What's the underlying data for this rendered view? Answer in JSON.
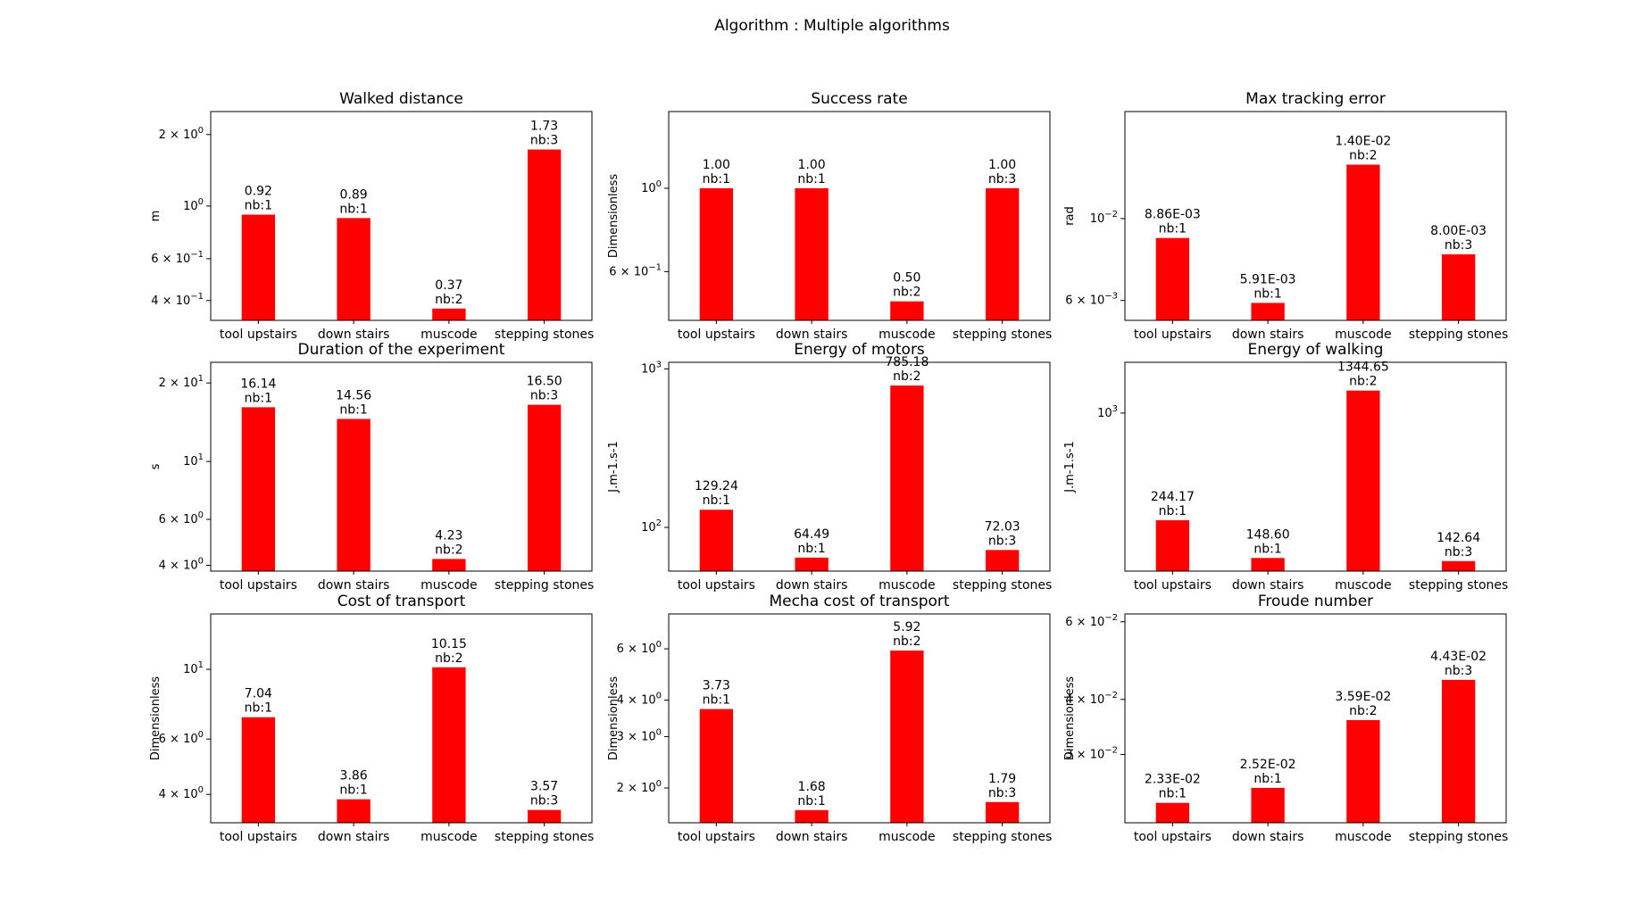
{
  "figure": {
    "suptitle": "Algorithm : Multiple algorithms",
    "bar_color": "#ff0000"
  },
  "chart_data": [
    {
      "type": "bar",
      "title": "Walked distance",
      "ylabel": "m",
      "yscale": "log",
      "ylim": [
        0.33,
        2.5
      ],
      "categories": [
        "tool upstairs",
        "down stairs",
        "muscode",
        "stepping stones"
      ],
      "values": [
        0.92,
        0.89,
        0.37,
        1.73
      ],
      "value_labels": [
        "0.92",
        "0.89",
        "0.37",
        "1.73"
      ],
      "counts": [
        "nb:1",
        "nb:1",
        "nb:2",
        "nb:3"
      ],
      "yticks": [
        {
          "value": 0.4,
          "mantissa": "4",
          "exp": "−1"
        },
        {
          "value": 0.6,
          "mantissa": "6",
          "exp": "−1"
        },
        {
          "value": 1,
          "mantissa": "10",
          "exp": "0"
        },
        {
          "value": 2,
          "mantissa": "2",
          "exp": "0"
        }
      ]
    },
    {
      "type": "bar",
      "title": "Success rate",
      "ylabel": "Dimensionless",
      "yscale": "log",
      "ylim": [
        0.445,
        1.6
      ],
      "categories": [
        "tool upstairs",
        "down stairs",
        "muscode",
        "stepping stones"
      ],
      "values": [
        1.0,
        1.0,
        0.5,
        1.0
      ],
      "value_labels": [
        "1.00",
        "1.00",
        "0.50",
        "1.00"
      ],
      "counts": [
        "nb:1",
        "nb:1",
        "nb:2",
        "nb:3"
      ],
      "yticks": [
        {
          "value": 0.6,
          "mantissa": "6",
          "exp": "−1"
        },
        {
          "value": 1,
          "mantissa": "10",
          "exp": "0"
        }
      ]
    },
    {
      "type": "bar",
      "title": "Max tracking error",
      "ylabel": "rad",
      "yscale": "log",
      "ylim": [
        0.0053,
        0.0195
      ],
      "categories": [
        "tool upstairs",
        "down stairs",
        "muscode",
        "stepping stones"
      ],
      "values": [
        0.00886,
        0.00591,
        0.014,
        0.008
      ],
      "value_labels": [
        "8.86E-03",
        "5.91E-03",
        "1.40E-02",
        "8.00E-03"
      ],
      "counts": [
        "nb:1",
        "nb:1",
        "nb:2",
        "nb:3"
      ],
      "yticks": [
        {
          "value": 0.006,
          "mantissa": "6",
          "exp": "−3"
        },
        {
          "value": 0.01,
          "mantissa": "10",
          "exp": "−2"
        }
      ]
    },
    {
      "type": "bar",
      "title": "Duration of the experiment",
      "ylabel": "s",
      "yscale": "log",
      "ylim": [
        3.8,
        24
      ],
      "categories": [
        "tool upstairs",
        "down stairs",
        "muscode",
        "stepping stones"
      ],
      "values": [
        16.14,
        14.56,
        4.23,
        16.5
      ],
      "value_labels": [
        "16.14",
        "14.56",
        "4.23",
        "16.50"
      ],
      "counts": [
        "nb:1",
        "nb:1",
        "nb:2",
        "nb:3"
      ],
      "yticks": [
        {
          "value": 4,
          "mantissa": "4",
          "exp": "0"
        },
        {
          "value": 6,
          "mantissa": "6",
          "exp": "0"
        },
        {
          "value": 10,
          "mantissa": "10",
          "exp": "1"
        },
        {
          "value": 20,
          "mantissa": "2",
          "exp": "1"
        }
      ]
    },
    {
      "type": "bar",
      "title": "Energy of motors",
      "ylabel": "J.m-1.s-1",
      "yscale": "log",
      "ylim": [
        53,
        1100
      ],
      "categories": [
        "tool upstairs",
        "down stairs",
        "muscode",
        "stepping stones"
      ],
      "values": [
        129.24,
        64.49,
        785.18,
        72.03
      ],
      "value_labels": [
        "129.24",
        "64.49",
        "785.18",
        "72.03"
      ],
      "counts": [
        "nb:1",
        "nb:1",
        "nb:2",
        "nb:3"
      ],
      "yticks": [
        {
          "value": 100,
          "mantissa": "10",
          "exp": "2"
        },
        {
          "value": 1000,
          "mantissa": "10",
          "exp": "3"
        }
      ]
    },
    {
      "type": "bar",
      "title": "Energy of walking",
      "ylabel": "J.m-1.s-1",
      "yscale": "log",
      "ylim": [
        125,
        1950
      ],
      "categories": [
        "tool upstairs",
        "down stairs",
        "muscode",
        "stepping stones"
      ],
      "values": [
        244.17,
        148.6,
        1344.65,
        142.64
      ],
      "value_labels": [
        "244.17",
        "148.60",
        "1344.65",
        "142.64"
      ],
      "counts": [
        "nb:1",
        "nb:1",
        "nb:2",
        "nb:3"
      ],
      "yticks": [
        {
          "value": 1000,
          "mantissa": "10",
          "exp": "3"
        }
      ]
    },
    {
      "type": "bar",
      "title": "Cost of transport",
      "ylabel": "Dimensionless",
      "yscale": "log",
      "ylim": [
        3.25,
        15
      ],
      "categories": [
        "tool upstairs",
        "down stairs",
        "muscode",
        "stepping stones"
      ],
      "values": [
        7.04,
        3.86,
        10.15,
        3.57
      ],
      "value_labels": [
        "7.04",
        "3.86",
        "10.15",
        "3.57"
      ],
      "counts": [
        "nb:1",
        "nb:1",
        "nb:2",
        "nb:3"
      ],
      "yticks": [
        {
          "value": 4,
          "mantissa": "4",
          "exp": "0"
        },
        {
          "value": 6,
          "mantissa": "6",
          "exp": "0"
        },
        {
          "value": 10,
          "mantissa": "10",
          "exp": "1"
        }
      ]
    },
    {
      "type": "bar",
      "title": "Mecha cost of transport",
      "ylabel": "Dimensionless",
      "yscale": "log",
      "ylim": [
        1.52,
        7.9
      ],
      "categories": [
        "tool upstairs",
        "down stairs",
        "muscode",
        "stepping stones"
      ],
      "values": [
        3.73,
        1.68,
        5.92,
        1.79
      ],
      "value_labels": [
        "3.73",
        "1.68",
        "5.92",
        "1.79"
      ],
      "counts": [
        "nb:1",
        "nb:1",
        "nb:2",
        "nb:3"
      ],
      "yticks": [
        {
          "value": 2,
          "mantissa": "2",
          "exp": "0"
        },
        {
          "value": 3,
          "mantissa": "3",
          "exp": "0"
        },
        {
          "value": 4,
          "mantissa": "4",
          "exp": "0"
        },
        {
          "value": 6,
          "mantissa": "6",
          "exp": "0"
        }
      ]
    },
    {
      "type": "bar",
      "title": "Froude number",
      "ylabel": "Dimensionless",
      "yscale": "log",
      "ylim": [
        0.021,
        0.0625
      ],
      "categories": [
        "tool upstairs",
        "down stairs",
        "muscode",
        "stepping stones"
      ],
      "values": [
        0.0233,
        0.0252,
        0.0359,
        0.0443
      ],
      "value_labels": [
        "2.33E-02",
        "2.52E-02",
        "3.59E-02",
        "4.43E-02"
      ],
      "counts": [
        "nb:1",
        "nb:1",
        "nb:2",
        "nb:3"
      ],
      "yticks": [
        {
          "value": 0.03,
          "mantissa": "3",
          "exp": "−2"
        },
        {
          "value": 0.04,
          "mantissa": "4",
          "exp": "−2"
        },
        {
          "value": 0.06,
          "mantissa": "6",
          "exp": "−2"
        }
      ]
    }
  ]
}
